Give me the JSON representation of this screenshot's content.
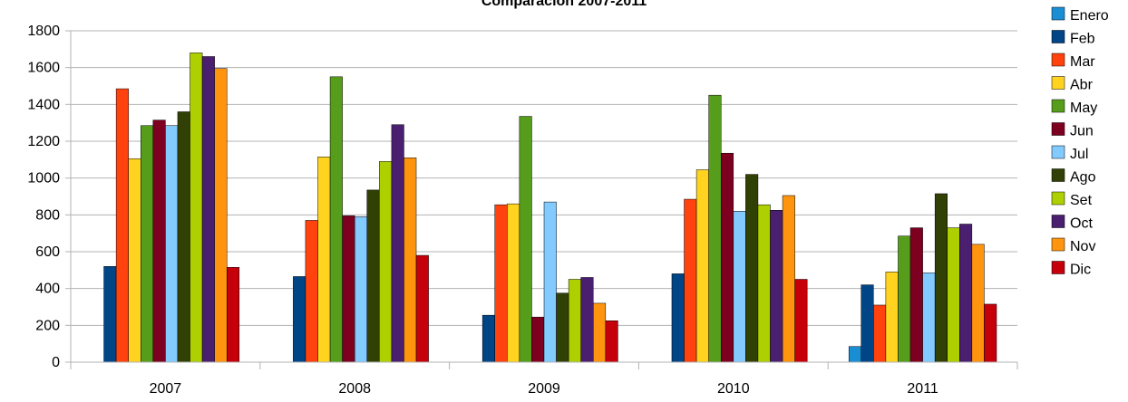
{
  "chart_data": {
    "type": "bar",
    "title": "Comparación 2007-2011",
    "xlabel": "",
    "ylabel": "",
    "ylim": [
      0,
      1800
    ],
    "yticks": [
      0,
      200,
      400,
      600,
      800,
      1000,
      1200,
      1400,
      1600,
      1800
    ],
    "grid": true,
    "legend_position": "right",
    "categories": [
      "2007",
      "2008",
      "2009",
      "2010",
      "2011"
    ],
    "series": [
      {
        "name": "Enero",
        "color": "#1a8ed4",
        "values": [
          0,
          0,
          0,
          0,
          85
        ]
      },
      {
        "name": "Feb",
        "color": "#004586",
        "values": [
          520,
          465,
          255,
          480,
          420
        ]
      },
      {
        "name": "Mar",
        "color": "#ff420e",
        "values": [
          1485,
          770,
          855,
          885,
          310
        ]
      },
      {
        "name": "Abr",
        "color": "#ffd320",
        "values": [
          1105,
          1115,
          860,
          1045,
          490
        ]
      },
      {
        "name": "May",
        "color": "#579d1c",
        "values": [
          1285,
          1550,
          1335,
          1450,
          685
        ]
      },
      {
        "name": "Jun",
        "color": "#7e0021",
        "values": [
          1315,
          795,
          245,
          1135,
          730
        ]
      },
      {
        "name": "Jul",
        "color": "#83caff",
        "values": [
          1285,
          790,
          870,
          820,
          485
        ]
      },
      {
        "name": "Ago",
        "color": "#314004",
        "values": [
          1360,
          935,
          375,
          1020,
          915
        ]
      },
      {
        "name": "Set",
        "color": "#aecf00",
        "values": [
          1680,
          1090,
          450,
          855,
          730
        ]
      },
      {
        "name": "Oct",
        "color": "#4b1f6f",
        "values": [
          1660,
          1290,
          460,
          825,
          750
        ]
      },
      {
        "name": "Nov",
        "color": "#ff950e",
        "values": [
          1595,
          1110,
          320,
          905,
          640
        ]
      },
      {
        "name": "Dic",
        "color": "#c5000b",
        "values": [
          515,
          580,
          225,
          450,
          315
        ]
      }
    ]
  }
}
